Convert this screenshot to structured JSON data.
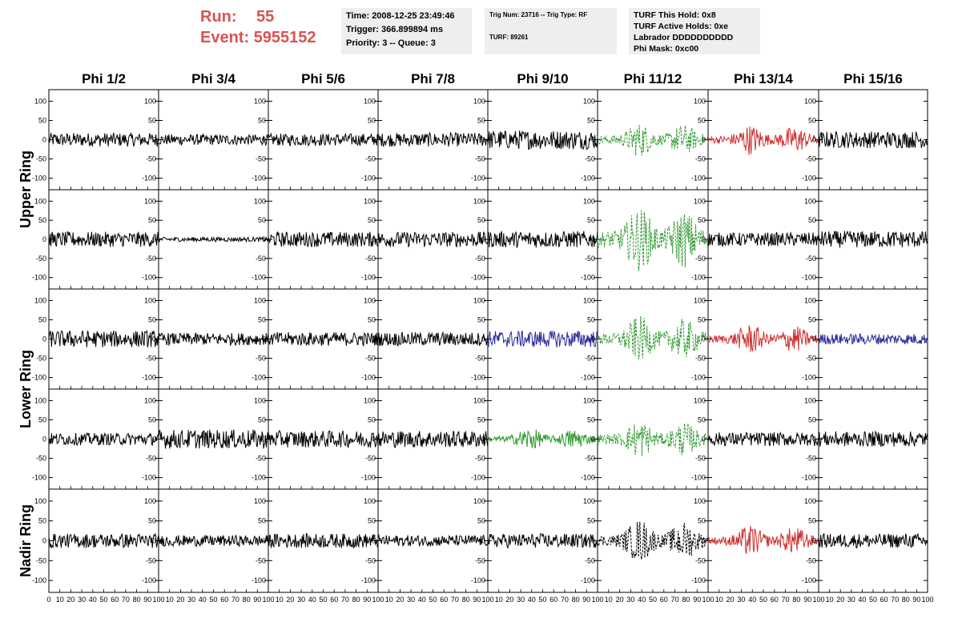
{
  "header": {
    "run_label": "Run:",
    "run_value": "55",
    "event_label": "Event:",
    "event_value": "5955152"
  },
  "info_box_1": {
    "line1": "Time: 2008-12-25 23:49:46",
    "line2": "Trigger: 366.899894 ms",
    "line3": "Priority: 3 -- Queue: 3"
  },
  "info_box_2": {
    "line1": "Trig Num: 23716 -- Trig Type: RF",
    "line2": "TURF: 89261"
  },
  "info_box_3": {
    "line1": "TURF This Hold: 0x8",
    "line2": "TURF Active Holds: 0xe",
    "line3": "Labrador DDDDDDDDDD",
    "line4": "Phi Mask: 0xc00"
  },
  "colors": {
    "black": "#000000",
    "green": "#2e9a2e",
    "red": "#d03030",
    "blue": "#2a2a9a",
    "accent_text": "#d9534f"
  },
  "chart_data": {
    "type": "line",
    "columns": [
      "Phi 1/2",
      "Phi 3/4",
      "Phi 5/6",
      "Phi 7/8",
      "Phi 9/10",
      "Phi 11/12",
      "Phi 13/14",
      "Phi 15/16"
    ],
    "ring_labels": [
      {
        "text": "Upper Ring",
        "rows": [
          0,
          1
        ]
      },
      {
        "text": "Lower Ring",
        "rows": [
          2,
          3
        ]
      },
      {
        "text": "Nadir Ring",
        "rows": [
          4
        ]
      }
    ],
    "xlim": [
      0,
      100
    ],
    "ylim": [
      -130,
      130
    ],
    "yticks": [
      -100,
      -50,
      0,
      50,
      100
    ],
    "xtick_labels_first": [
      "0",
      "10",
      "20",
      "30",
      "40",
      "50",
      "60",
      "70",
      "80",
      "90",
      "100"
    ],
    "xtick_labels_other": [
      "10",
      "20",
      "30",
      "40",
      "50",
      "60",
      "70",
      "80",
      "90",
      "100"
    ],
    "waveforms": [
      [
        {
          "color": "black",
          "amp": 18,
          "dashed": false,
          "burst": false
        },
        {
          "color": "black",
          "amp": 14,
          "dashed": false,
          "burst": false
        },
        {
          "color": "black",
          "amp": 16,
          "dashed": false,
          "burst": false
        },
        {
          "color": "black",
          "amp": 18,
          "dashed": false,
          "burst": false
        },
        {
          "color": "black",
          "amp": 25,
          "dashed": false,
          "burst": false
        },
        {
          "color": "green",
          "amp": 45,
          "dashed": true,
          "burst": true
        },
        {
          "color": "red",
          "amp": 40,
          "dashed": false,
          "burst": true
        },
        {
          "color": "black",
          "amp": 22,
          "dashed": false,
          "burst": false
        }
      ],
      [
        {
          "color": "black",
          "amp": 20,
          "dashed": false,
          "burst": false
        },
        {
          "color": "black",
          "amp": 6,
          "dashed": false,
          "burst": false
        },
        {
          "color": "black",
          "amp": 20,
          "dashed": false,
          "burst": false
        },
        {
          "color": "black",
          "amp": 20,
          "dashed": false,
          "burst": false
        },
        {
          "color": "black",
          "amp": 22,
          "dashed": false,
          "burst": false
        },
        {
          "color": "green",
          "amp": 85,
          "dashed": true,
          "burst": true
        },
        {
          "color": "black",
          "amp": 18,
          "dashed": false,
          "burst": false
        },
        {
          "color": "black",
          "amp": 22,
          "dashed": false,
          "burst": false
        }
      ],
      [
        {
          "color": "black",
          "amp": 22,
          "dashed": false,
          "burst": false
        },
        {
          "color": "black",
          "amp": 16,
          "dashed": false,
          "burst": false
        },
        {
          "color": "black",
          "amp": 18,
          "dashed": false,
          "burst": false
        },
        {
          "color": "black",
          "amp": 18,
          "dashed": false,
          "burst": false
        },
        {
          "color": "blue",
          "amp": 22,
          "dashed": false,
          "burst": false
        },
        {
          "color": "green",
          "amp": 60,
          "dashed": true,
          "burst": true
        },
        {
          "color": "red",
          "amp": 40,
          "dashed": false,
          "burst": true
        },
        {
          "color": "blue",
          "amp": 14,
          "dashed": false,
          "burst": false
        }
      ],
      [
        {
          "color": "black",
          "amp": 16,
          "dashed": false,
          "burst": false
        },
        {
          "color": "black",
          "amp": 25,
          "dashed": false,
          "burst": false
        },
        {
          "color": "black",
          "amp": 22,
          "dashed": false,
          "burst": false
        },
        {
          "color": "black",
          "amp": 22,
          "dashed": false,
          "burst": false
        },
        {
          "color": "green",
          "amp": 30,
          "dashed": false,
          "burst": true
        },
        {
          "color": "green",
          "amp": 50,
          "dashed": true,
          "burst": true
        },
        {
          "color": "black",
          "amp": 18,
          "dashed": false,
          "burst": false
        },
        {
          "color": "black",
          "amp": 20,
          "dashed": false,
          "burst": false
        }
      ],
      [
        {
          "color": "black",
          "amp": 18,
          "dashed": false,
          "burst": false
        },
        {
          "color": "black",
          "amp": 14,
          "dashed": false,
          "burst": false
        },
        {
          "color": "black",
          "amp": 18,
          "dashed": false,
          "burst": false
        },
        {
          "color": "black",
          "amp": 14,
          "dashed": false,
          "burst": false
        },
        {
          "color": "black",
          "amp": 18,
          "dashed": false,
          "burst": false
        },
        {
          "color": "black",
          "amp": 55,
          "dashed": true,
          "burst": true
        },
        {
          "color": "red",
          "amp": 40,
          "dashed": false,
          "burst": true
        },
        {
          "color": "black",
          "amp": 18,
          "dashed": false,
          "burst": false
        }
      ]
    ]
  }
}
